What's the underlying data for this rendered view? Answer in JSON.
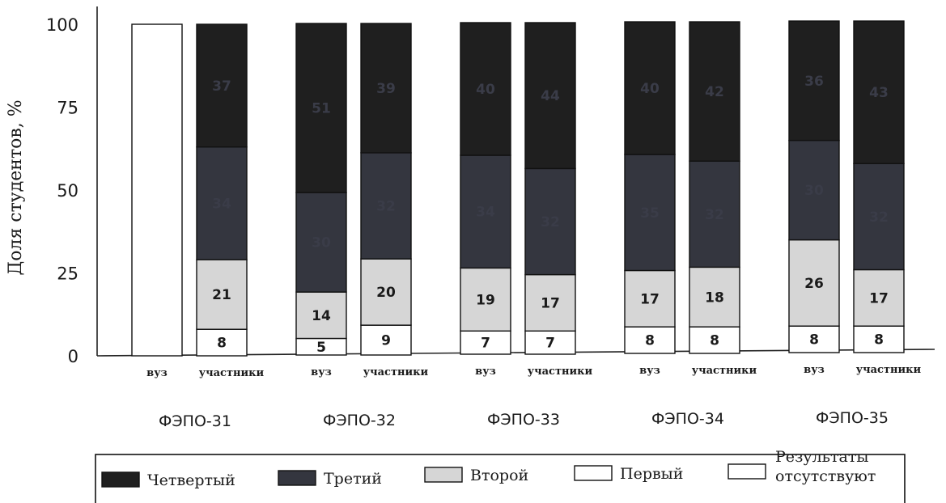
{
  "chart_data": {
    "type": "bar",
    "stacked": true,
    "ylabel": "Доля студентов, %",
    "ylim": [
      0,
      100
    ],
    "yticks": [
      0,
      25,
      50,
      75,
      100
    ],
    "groups": [
      {
        "name": "ФЭПО-31",
        "bars": [
          {
            "label": "вуз",
            "values": {
              "missing": 100
            },
            "labels": {}
          },
          {
            "label": "участники",
            "values": {
              "first": 8,
              "second": 21,
              "third": 34,
              "fourth": 37
            },
            "labels": {
              "first": "8",
              "second": "21",
              "third": "34",
              "fourth": "37"
            }
          }
        ]
      },
      {
        "name": "ФЭПО-32",
        "bars": [
          {
            "label": "вуз",
            "values": {
              "first": 5,
              "second": 14,
              "third": 30,
              "fourth": 51
            },
            "labels": {
              "first": "5",
              "second": "14",
              "third": "30",
              "fourth": "51"
            }
          },
          {
            "label": "участники",
            "values": {
              "first": 9,
              "second": 20,
              "third": 32,
              "fourth": 39
            },
            "labels": {
              "first": "9",
              "second": "20",
              "third": "32",
              "fourth": "39"
            }
          }
        ]
      },
      {
        "name": "ФЭПО-33",
        "bars": [
          {
            "label": "вуз",
            "values": {
              "first": 7,
              "second": 19,
              "third": 34,
              "fourth": 40
            },
            "labels": {
              "first": "7",
              "second": "19",
              "third": "34",
              "fourth": "40"
            }
          },
          {
            "label": "участники",
            "values": {
              "first": 7,
              "second": 17,
              "third": 32,
              "fourth": 44
            },
            "labels": {
              "first": "7",
              "second": "17",
              "third": "32",
              "fourth": "44"
            }
          }
        ]
      },
      {
        "name": "ФЭПО-34",
        "bars": [
          {
            "label": "вуз",
            "values": {
              "first": 8,
              "second": 17,
              "third": 35,
              "fourth": 40
            },
            "labels": {
              "first": "8",
              "second": "17",
              "third": "35",
              "fourth": "40"
            }
          },
          {
            "label": "участники",
            "values": {
              "first": 8,
              "second": 18,
              "third": 32,
              "fourth": 42
            },
            "labels": {
              "first": "8",
              "second": "18",
              "third": "32",
              "fourth": "42"
            }
          }
        ]
      },
      {
        "name": "ФЭПО-35",
        "bars": [
          {
            "label": "вуз",
            "values": {
              "first": 8,
              "second": 26,
              "third": 30,
              "fourth": 36
            },
            "labels": {
              "first": "8",
              "second": "26",
              "third": "30",
              "fourth": "36"
            }
          },
          {
            "label": "участники",
            "values": {
              "first": 8,
              "second": 17,
              "third": 32,
              "fourth": 43
            },
            "labels": {
              "first": "8",
              "second": "17",
              "third": "32",
              "fourth": "43"
            }
          }
        ]
      }
    ],
    "stack_order": [
      "missing",
      "first",
      "second",
      "third",
      "fourth"
    ],
    "legend": [
      {
        "key": "fourth",
        "name": "Четвертый"
      },
      {
        "key": "third",
        "name": "Третий"
      },
      {
        "key": "second",
        "name": "Второй"
      },
      {
        "key": "first",
        "name": "Первый"
      },
      {
        "key": "missing",
        "name": "Результаты отсутствуют"
      }
    ],
    "colors": {
      "fourth": "#1f1f1f",
      "third": "#34363f",
      "second": "#d6d6d6",
      "first": "#ffffff",
      "missing": "#ffffff",
      "label_on_dark": "#3a3c48",
      "label_on_light": "#1a1a1a"
    },
    "grid": false,
    "legend_position": "bottom"
  }
}
